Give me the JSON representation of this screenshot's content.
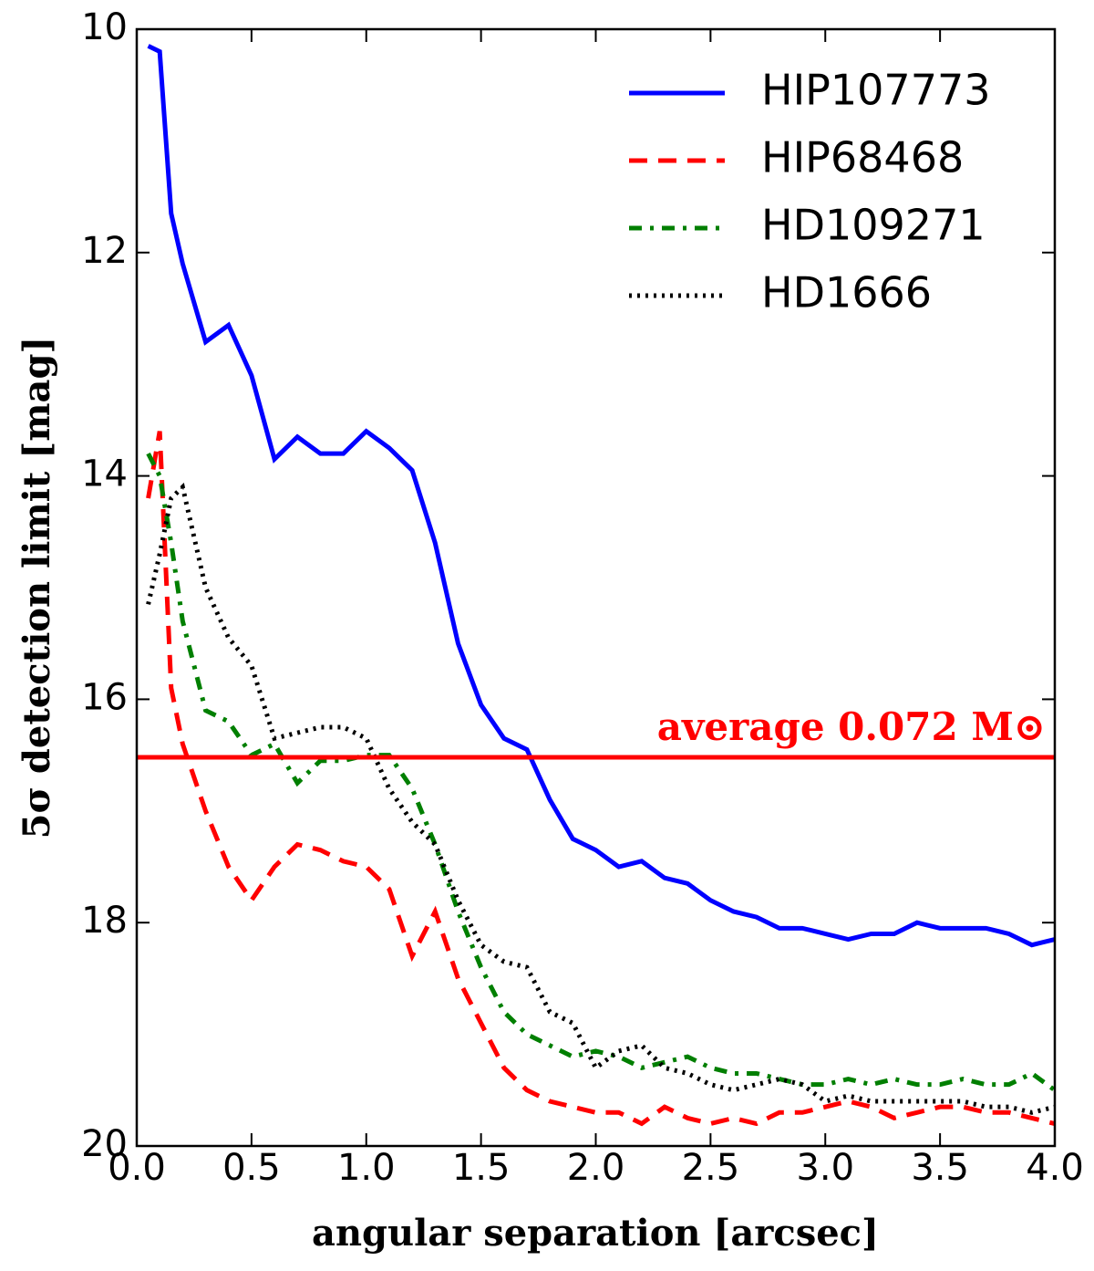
{
  "chart_data": {
    "type": "line",
    "xlabel": "angular separation [arcsec]",
    "ylabel": "5σ detection limit [mag]",
    "x": [
      0.05,
      0.1,
      0.15,
      0.2,
      0.3,
      0.4,
      0.5,
      0.6,
      0.7,
      0.8,
      0.9,
      1.0,
      1.1,
      1.2,
      1.3,
      1.4,
      1.5,
      1.6,
      1.7,
      1.8,
      1.9,
      2.0,
      2.1,
      2.2,
      2.3,
      2.4,
      2.5,
      2.6,
      2.7,
      2.8,
      2.9,
      3.0,
      3.1,
      3.2,
      3.3,
      3.4,
      3.5,
      3.6,
      3.7,
      3.8,
      3.9,
      4.0
    ],
    "series": [
      {
        "name": "HIP107773",
        "color": "#0000ff",
        "style": "solid",
        "values": [
          10.15,
          10.2,
          11.65,
          12.1,
          12.8,
          12.65,
          13.1,
          13.85,
          13.65,
          13.8,
          13.8,
          13.6,
          13.75,
          13.95,
          14.6,
          15.5,
          16.05,
          16.35,
          16.45,
          16.9,
          17.25,
          17.35,
          17.5,
          17.45,
          17.6,
          17.65,
          17.8,
          17.9,
          17.95,
          18.05,
          18.05,
          18.1,
          18.15,
          18.1,
          18.1,
          18.0,
          18.05,
          18.05,
          18.05,
          18.1,
          18.2,
          18.15
        ]
      },
      {
        "name": "HIP68468",
        "color": "#ff0000",
        "style": "dashed",
        "values": [
          14.2,
          13.6,
          15.9,
          16.4,
          17.0,
          17.5,
          17.8,
          17.5,
          17.3,
          17.35,
          17.45,
          17.5,
          17.7,
          18.3,
          17.9,
          18.5,
          18.9,
          19.3,
          19.5,
          19.6,
          19.65,
          19.7,
          19.7,
          19.8,
          19.65,
          19.75,
          19.8,
          19.75,
          19.8,
          19.7,
          19.7,
          19.65,
          19.6,
          19.65,
          19.75,
          19.7,
          19.65,
          19.65,
          19.7,
          19.7,
          19.75,
          19.8
        ]
      },
      {
        "name": "HD109271",
        "color": "#007f00",
        "style": "dashdot",
        "values": [
          13.8,
          14.0,
          14.6,
          15.3,
          16.1,
          16.2,
          16.5,
          16.4,
          16.75,
          16.55,
          16.55,
          16.5,
          16.5,
          16.8,
          17.3,
          17.9,
          18.4,
          18.8,
          19.0,
          19.1,
          19.2,
          19.15,
          19.2,
          19.3,
          19.25,
          19.2,
          19.3,
          19.35,
          19.35,
          19.4,
          19.45,
          19.45,
          19.4,
          19.45,
          19.4,
          19.45,
          19.45,
          19.4,
          19.45,
          19.45,
          19.35,
          19.5
        ]
      },
      {
        "name": "HD1666",
        "color": "#000000",
        "style": "dotted",
        "values": [
          15.15,
          14.7,
          14.2,
          14.1,
          15.0,
          15.45,
          15.7,
          16.35,
          16.3,
          16.25,
          16.25,
          16.35,
          16.8,
          17.1,
          17.3,
          17.8,
          18.2,
          18.35,
          18.4,
          18.8,
          18.9,
          19.3,
          19.15,
          19.1,
          19.3,
          19.35,
          19.45,
          19.5,
          19.45,
          19.4,
          19.45,
          19.6,
          19.55,
          19.6,
          19.6,
          19.6,
          19.6,
          19.6,
          19.65,
          19.65,
          19.7,
          19.65
        ]
      }
    ],
    "hline": {
      "value": 16.52,
      "color": "#ff0000",
      "label": "average 0.072 M⊙"
    },
    "xlim": [
      0,
      4
    ],
    "xticks": [
      {
        "value": 0,
        "label": "0.0"
      },
      0.5,
      {
        "value": 1,
        "label": "1.0"
      },
      1.5,
      {
        "value": 2,
        "label": "2.0"
      },
      2.5,
      {
        "value": 3,
        "label": "3.0"
      },
      3.5,
      {
        "value": 4,
        "label": "4.0"
      }
    ],
    "ylim": [
      10,
      20
    ],
    "yticks": [
      10,
      12,
      14,
      16,
      18,
      20
    ],
    "y_inverted": true,
    "legend": "upper right"
  }
}
